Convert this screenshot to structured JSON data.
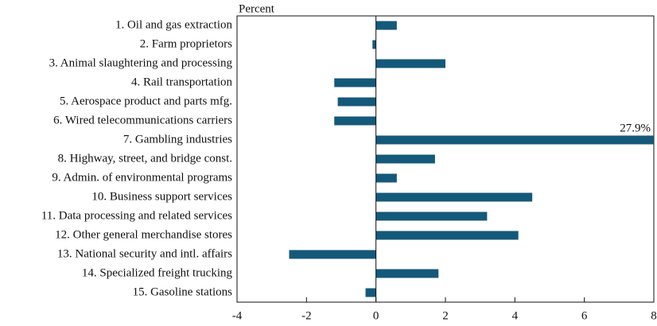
{
  "chart_data": {
    "type": "barh",
    "axis_label": "Percent",
    "categories": [
      "1. Oil and gas extraction",
      "2. Farm proprietors",
      "3. Animal slaughtering and processing",
      "4. Rail transportation",
      "5. Aerospace product and parts mfg.",
      "6. Wired telecommunications carriers",
      "7. Gambling industries",
      "8. Highway, street, and bridge const.",
      "9. Admin. of environmental programs",
      "10. Business support services",
      "11. Data processing and related services",
      "12. Other general merchandise stores",
      "13. National security and intl. affairs",
      "14. Specialized freight trucking",
      "15. Gasoline stations"
    ],
    "values": [
      0.6,
      -0.1,
      2.0,
      -1.2,
      -1.1,
      -1.2,
      27.9,
      1.7,
      0.6,
      4.5,
      3.2,
      4.1,
      -2.5,
      1.8,
      -0.3
    ],
    "value_labels": [
      null,
      null,
      null,
      null,
      null,
      null,
      "27.9%",
      null,
      null,
      null,
      null,
      null,
      null,
      null,
      null
    ],
    "color": "#14597a",
    "xlim": [
      -4,
      8
    ],
    "xticks": [
      -4,
      -2,
      0,
      2,
      4,
      6,
      8
    ]
  }
}
